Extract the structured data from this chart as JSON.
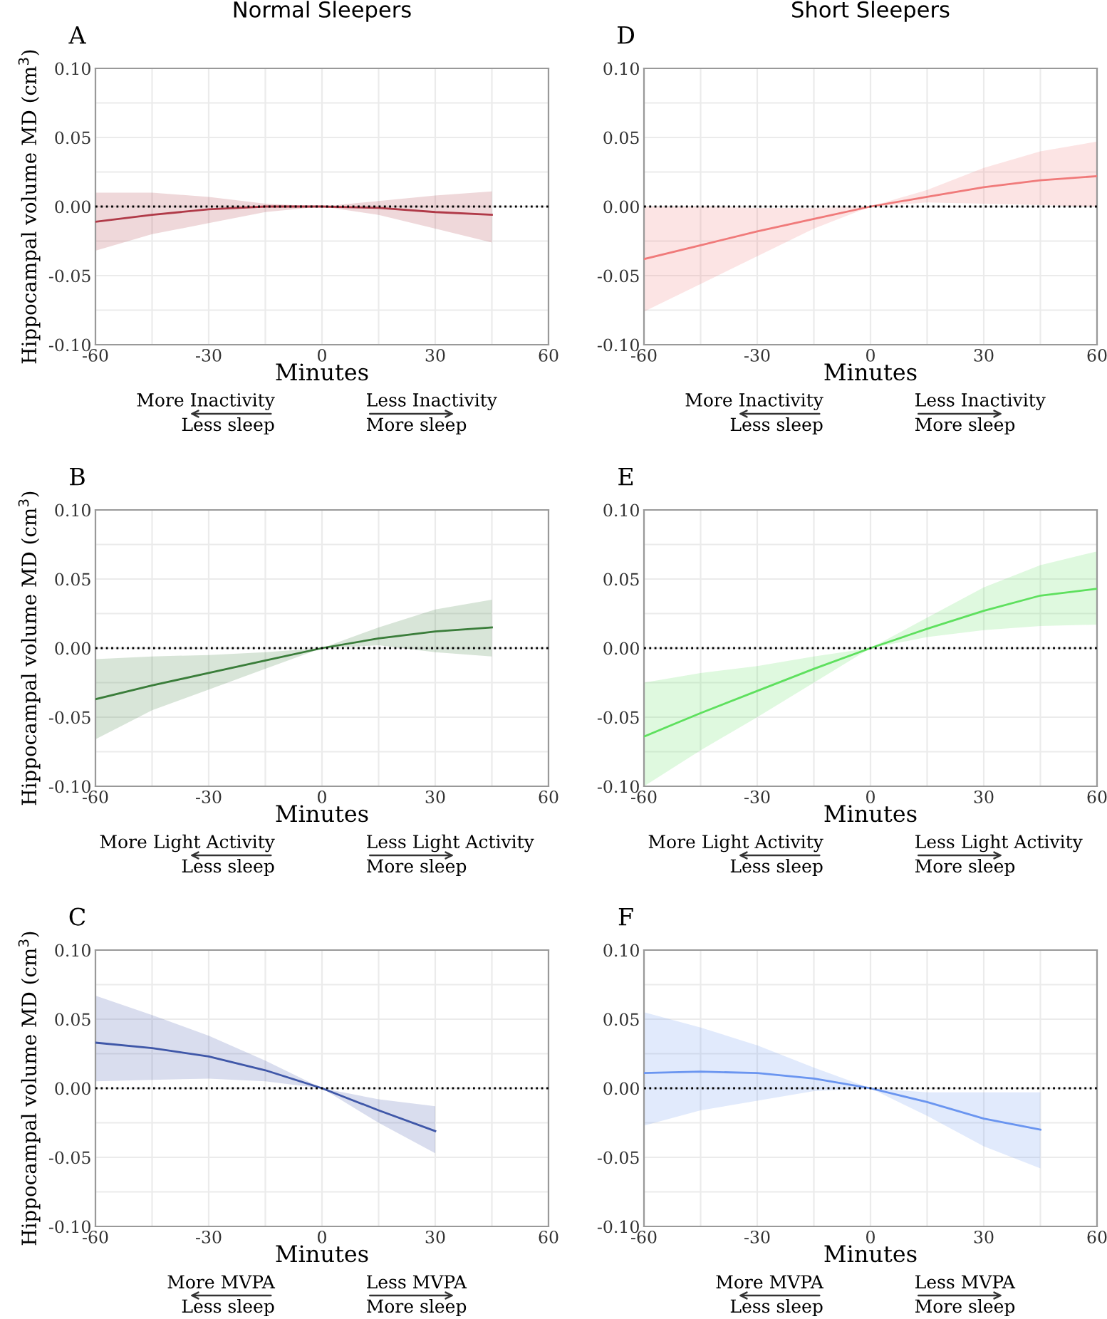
{
  "chart_data": [
    {
      "type": "line",
      "title": "Normal Sleepers",
      "ylabel": "Hippocampal volume MD (cm$^{3}$)",
      "xlabel": "Minutes",
      "annotations": [
        "A",
        "More Inactivity",
        "Less sleep",
        "Less Inactivity",
        "More sleep"
      ],
      "xlim": [
        -60,
        60
      ],
      "xticks": [
        -60,
        {
          "value": -45,
          "label": null
        },
        -30,
        {
          "value": -15,
          "label": null
        },
        0,
        {
          "value": 15,
          "label": null
        },
        30,
        {
          "value": 45,
          "label": null
        },
        60
      ],
      "ylim": [
        -0.1,
        0.1
      ],
      "yticks": [
        {
          "value": -0.1,
          "label": "-0.10"
        },
        {
          "value": -0.075,
          "label": null
        },
        {
          "value": -0.05,
          "label": "-0.05"
        },
        {
          "value": -0.025,
          "label": null
        },
        {
          "value": 0,
          "label": "0.00"
        },
        {
          "value": 0.025,
          "label": null
        },
        {
          "value": 0.05,
          "label": "0.05"
        },
        {
          "value": 0.075,
          "label": null
        },
        {
          "value": 0.1,
          "label": "0.10"
        }
      ],
      "grid": true,
      "ref_lines": [
        {
          "axis": "y",
          "value": 0,
          "color": "#000000",
          "line_style": "dotted"
        }
      ],
      "series": [
        {
          "color": "#b03a48",
          "x": [
            -60,
            -45,
            -30,
            -15,
            0,
            15,
            30,
            45
          ],
          "values": [
            -0.011,
            -0.006,
            -0.002,
            0.0,
            0,
            -0.001,
            -0.004,
            -0.006
          ],
          "lower": [
            -0.032,
            -0.02,
            -0.012,
            -0.004,
            0,
            -0.006,
            -0.016,
            -0.026
          ],
          "upper": [
            0.01,
            0.01,
            0.007,
            0.002,
            0,
            0.004,
            0.008,
            0.011
          ]
        }
      ]
    },
    {
      "type": "line",
      "ylabel": "Hippocampal volume MD (cm$^{3}$)",
      "xlabel": "Minutes",
      "annotations": [
        "B",
        "More Light Activity",
        "Less sleep",
        "Less Light Activity",
        "More sleep"
      ],
      "xlim": [
        -60,
        60
      ],
      "xticks": [
        -60,
        {
          "value": -45,
          "label": null
        },
        -30,
        {
          "value": -15,
          "label": null
        },
        0,
        {
          "value": 15,
          "label": null
        },
        30,
        {
          "value": 45,
          "label": null
        },
        60
      ],
      "ylim": [
        -0.1,
        0.1
      ],
      "yticks": [
        {
          "value": -0.1,
          "label": "-0.10"
        },
        {
          "value": -0.075,
          "label": null
        },
        {
          "value": -0.05,
          "label": "-0.05"
        },
        {
          "value": -0.025,
          "label": null
        },
        {
          "value": 0,
          "label": "0.00"
        },
        {
          "value": 0.025,
          "label": null
        },
        {
          "value": 0.05,
          "label": "0.05"
        },
        {
          "value": 0.075,
          "label": null
        },
        {
          "value": 0.1,
          "label": "0.10"
        }
      ],
      "grid": true,
      "ref_lines": [
        {
          "axis": "y",
          "value": 0,
          "color": "#000000",
          "line_style": "dotted"
        }
      ],
      "series": [
        {
          "color": "#3a7d3a",
          "x": [
            -60,
            -45,
            -30,
            -15,
            0,
            15,
            30,
            45
          ],
          "values": [
            -0.037,
            -0.027,
            -0.018,
            -0.009,
            0,
            0.007,
            0.012,
            0.015
          ],
          "lower": [
            -0.066,
            -0.045,
            -0.03,
            -0.015,
            0,
            0.002,
            -0.003,
            -0.006
          ],
          "upper": [
            -0.008,
            -0.006,
            -0.005,
            -0.003,
            0,
            0.015,
            0.028,
            0.035
          ]
        }
      ]
    },
    {
      "type": "line",
      "ylabel": "Hippocampal volume MD (cm$^{3}$)",
      "xlabel": "Minutes",
      "annotations": [
        "C",
        "More MVPA",
        "Less sleep",
        "Less MVPA",
        "More sleep"
      ],
      "xlim": [
        -60,
        60
      ],
      "xticks": [
        -60,
        {
          "value": -45,
          "label": null
        },
        -30,
        {
          "value": -15,
          "label": null
        },
        0,
        {
          "value": 15,
          "label": null
        },
        30,
        {
          "value": 45,
          "label": null
        },
        60
      ],
      "ylim": [
        -0.1,
        0.1
      ],
      "yticks": [
        {
          "value": -0.1,
          "label": "-0.10"
        },
        {
          "value": -0.075,
          "label": null
        },
        {
          "value": -0.05,
          "label": "-0.05"
        },
        {
          "value": -0.025,
          "label": null
        },
        {
          "value": 0,
          "label": "0.00"
        },
        {
          "value": 0.025,
          "label": null
        },
        {
          "value": 0.05,
          "label": "0.05"
        },
        {
          "value": 0.075,
          "label": null
        },
        {
          "value": 0.1,
          "label": "0.10"
        }
      ],
      "grid": true,
      "ref_lines": [
        {
          "axis": "y",
          "value": 0,
          "color": "#000000",
          "line_style": "dotted"
        }
      ],
      "series": [
        {
          "color": "#3f57a8",
          "x": [
            -60,
            -45,
            -30,
            -15,
            0,
            15,
            30
          ],
          "values": [
            0.033,
            0.029,
            0.023,
            0.013,
            0,
            -0.016,
            -0.031
          ],
          "lower": [
            0.005,
            0.006,
            0.007,
            0.005,
            0,
            -0.025,
            -0.047
          ],
          "upper": [
            0.067,
            0.053,
            0.038,
            0.02,
            0,
            -0.008,
            -0.013
          ]
        }
      ]
    },
    {
      "type": "line",
      "title": "Short Sleepers",
      "xlabel": "Minutes",
      "annotations": [
        "D",
        "More Inactivity",
        "Less sleep",
        "Less Inactivity",
        "More sleep"
      ],
      "xlim": [
        -60,
        60
      ],
      "xticks": [
        -60,
        {
          "value": -45,
          "label": null
        },
        -30,
        {
          "value": -15,
          "label": null
        },
        0,
        {
          "value": 15,
          "label": null
        },
        30,
        {
          "value": 45,
          "label": null
        },
        60
      ],
      "ylim": [
        -0.1,
        0.1
      ],
      "yticks": [
        {
          "value": -0.1,
          "label": "-0.10"
        },
        {
          "value": -0.075,
          "label": null
        },
        {
          "value": -0.05,
          "label": "-0.05"
        },
        {
          "value": -0.025,
          "label": null
        },
        {
          "value": 0,
          "label": "0.00"
        },
        {
          "value": 0.025,
          "label": null
        },
        {
          "value": 0.05,
          "label": "0.05"
        },
        {
          "value": 0.075,
          "label": null
        },
        {
          "value": 0.1,
          "label": "0.10"
        }
      ],
      "grid": true,
      "ref_lines": [
        {
          "axis": "y",
          "value": 0,
          "color": "#000000",
          "line_style": "dotted"
        }
      ],
      "series": [
        {
          "color": "#f07a7a",
          "x": [
            -60,
            -45,
            -30,
            -15,
            0,
            15,
            30,
            45,
            60
          ],
          "values": [
            -0.038,
            -0.028,
            -0.018,
            -0.009,
            0,
            0.007,
            0.014,
            0.019,
            0.022
          ],
          "lower": [
            -0.076,
            -0.056,
            -0.036,
            -0.016,
            0,
            0.003,
            0.002,
            0.001,
            0.0
          ],
          "upper": [
            0.0,
            0.0,
            -0.001,
            -0.001,
            0,
            0.012,
            0.028,
            0.04,
            0.047
          ]
        }
      ]
    },
    {
      "type": "line",
      "xlabel": "Minutes",
      "annotations": [
        "E",
        "More Light Activity",
        "Less sleep",
        "Less Light Activity",
        "More sleep"
      ],
      "xlim": [
        -60,
        60
      ],
      "xticks": [
        -60,
        {
          "value": -45,
          "label": null
        },
        -30,
        {
          "value": -15,
          "label": null
        },
        0,
        {
          "value": 15,
          "label": null
        },
        30,
        {
          "value": 45,
          "label": null
        },
        60
      ],
      "ylim": [
        -0.1,
        0.1
      ],
      "yticks": [
        {
          "value": -0.1,
          "label": "-0.10"
        },
        {
          "value": -0.075,
          "label": null
        },
        {
          "value": -0.05,
          "label": "-0.05"
        },
        {
          "value": -0.025,
          "label": null
        },
        {
          "value": 0,
          "label": "0.00"
        },
        {
          "value": 0.025,
          "label": null
        },
        {
          "value": 0.05,
          "label": "0.05"
        },
        {
          "value": 0.075,
          "label": null
        },
        {
          "value": 0.1,
          "label": "0.10"
        }
      ],
      "grid": true,
      "ref_lines": [
        {
          "axis": "y",
          "value": 0,
          "color": "#000000",
          "line_style": "dotted"
        }
      ],
      "series": [
        {
          "color": "#5ee05e",
          "x": [
            -60,
            -45,
            -30,
            -15,
            0,
            15,
            30,
            45,
            60
          ],
          "values": [
            -0.064,
            -0.047,
            -0.031,
            -0.015,
            0,
            0.014,
            0.027,
            0.038,
            0.043
          ],
          "lower": [
            -0.1,
            -0.074,
            -0.05,
            -0.025,
            0,
            0.008,
            0.013,
            0.016,
            0.017
          ],
          "upper": [
            -0.025,
            -0.018,
            -0.013,
            -0.006,
            0,
            0.022,
            0.044,
            0.06,
            0.07
          ]
        }
      ]
    },
    {
      "type": "line",
      "xlabel": "Minutes",
      "annotations": [
        "F",
        "More MVPA",
        "Less sleep",
        "Less MVPA",
        "More sleep"
      ],
      "xlim": [
        -60,
        60
      ],
      "xticks": [
        -60,
        {
          "value": -45,
          "label": null
        },
        -30,
        {
          "value": -15,
          "label": null
        },
        0,
        {
          "value": 15,
          "label": null
        },
        30,
        {
          "value": 45,
          "label": null
        },
        60
      ],
      "ylim": [
        -0.1,
        0.1
      ],
      "yticks": [
        {
          "value": -0.1,
          "label": "-0.10"
        },
        {
          "value": -0.075,
          "label": null
        },
        {
          "value": -0.05,
          "label": "-0.05"
        },
        {
          "value": -0.025,
          "label": null
        },
        {
          "value": 0,
          "label": "0.00"
        },
        {
          "value": 0.025,
          "label": null
        },
        {
          "value": 0.05,
          "label": "0.05"
        },
        {
          "value": 0.075,
          "label": null
        },
        {
          "value": 0.1,
          "label": "0.10"
        }
      ],
      "grid": true,
      "ref_lines": [
        {
          "axis": "y",
          "value": 0,
          "color": "#000000",
          "line_style": "dotted"
        }
      ],
      "series": [
        {
          "color": "#6a95f0",
          "x": [
            -60,
            -45,
            -30,
            -15,
            0,
            15,
            30,
            45
          ],
          "values": [
            0.011,
            0.012,
            0.011,
            0.007,
            0,
            -0.01,
            -0.022,
            -0.03
          ],
          "lower": [
            -0.027,
            -0.016,
            -0.009,
            -0.002,
            0,
            -0.02,
            -0.042,
            -0.058
          ],
          "upper": [
            0.055,
            0.044,
            0.031,
            0.015,
            0,
            -0.003,
            -0.003,
            -0.003
          ]
        }
      ]
    }
  ]
}
